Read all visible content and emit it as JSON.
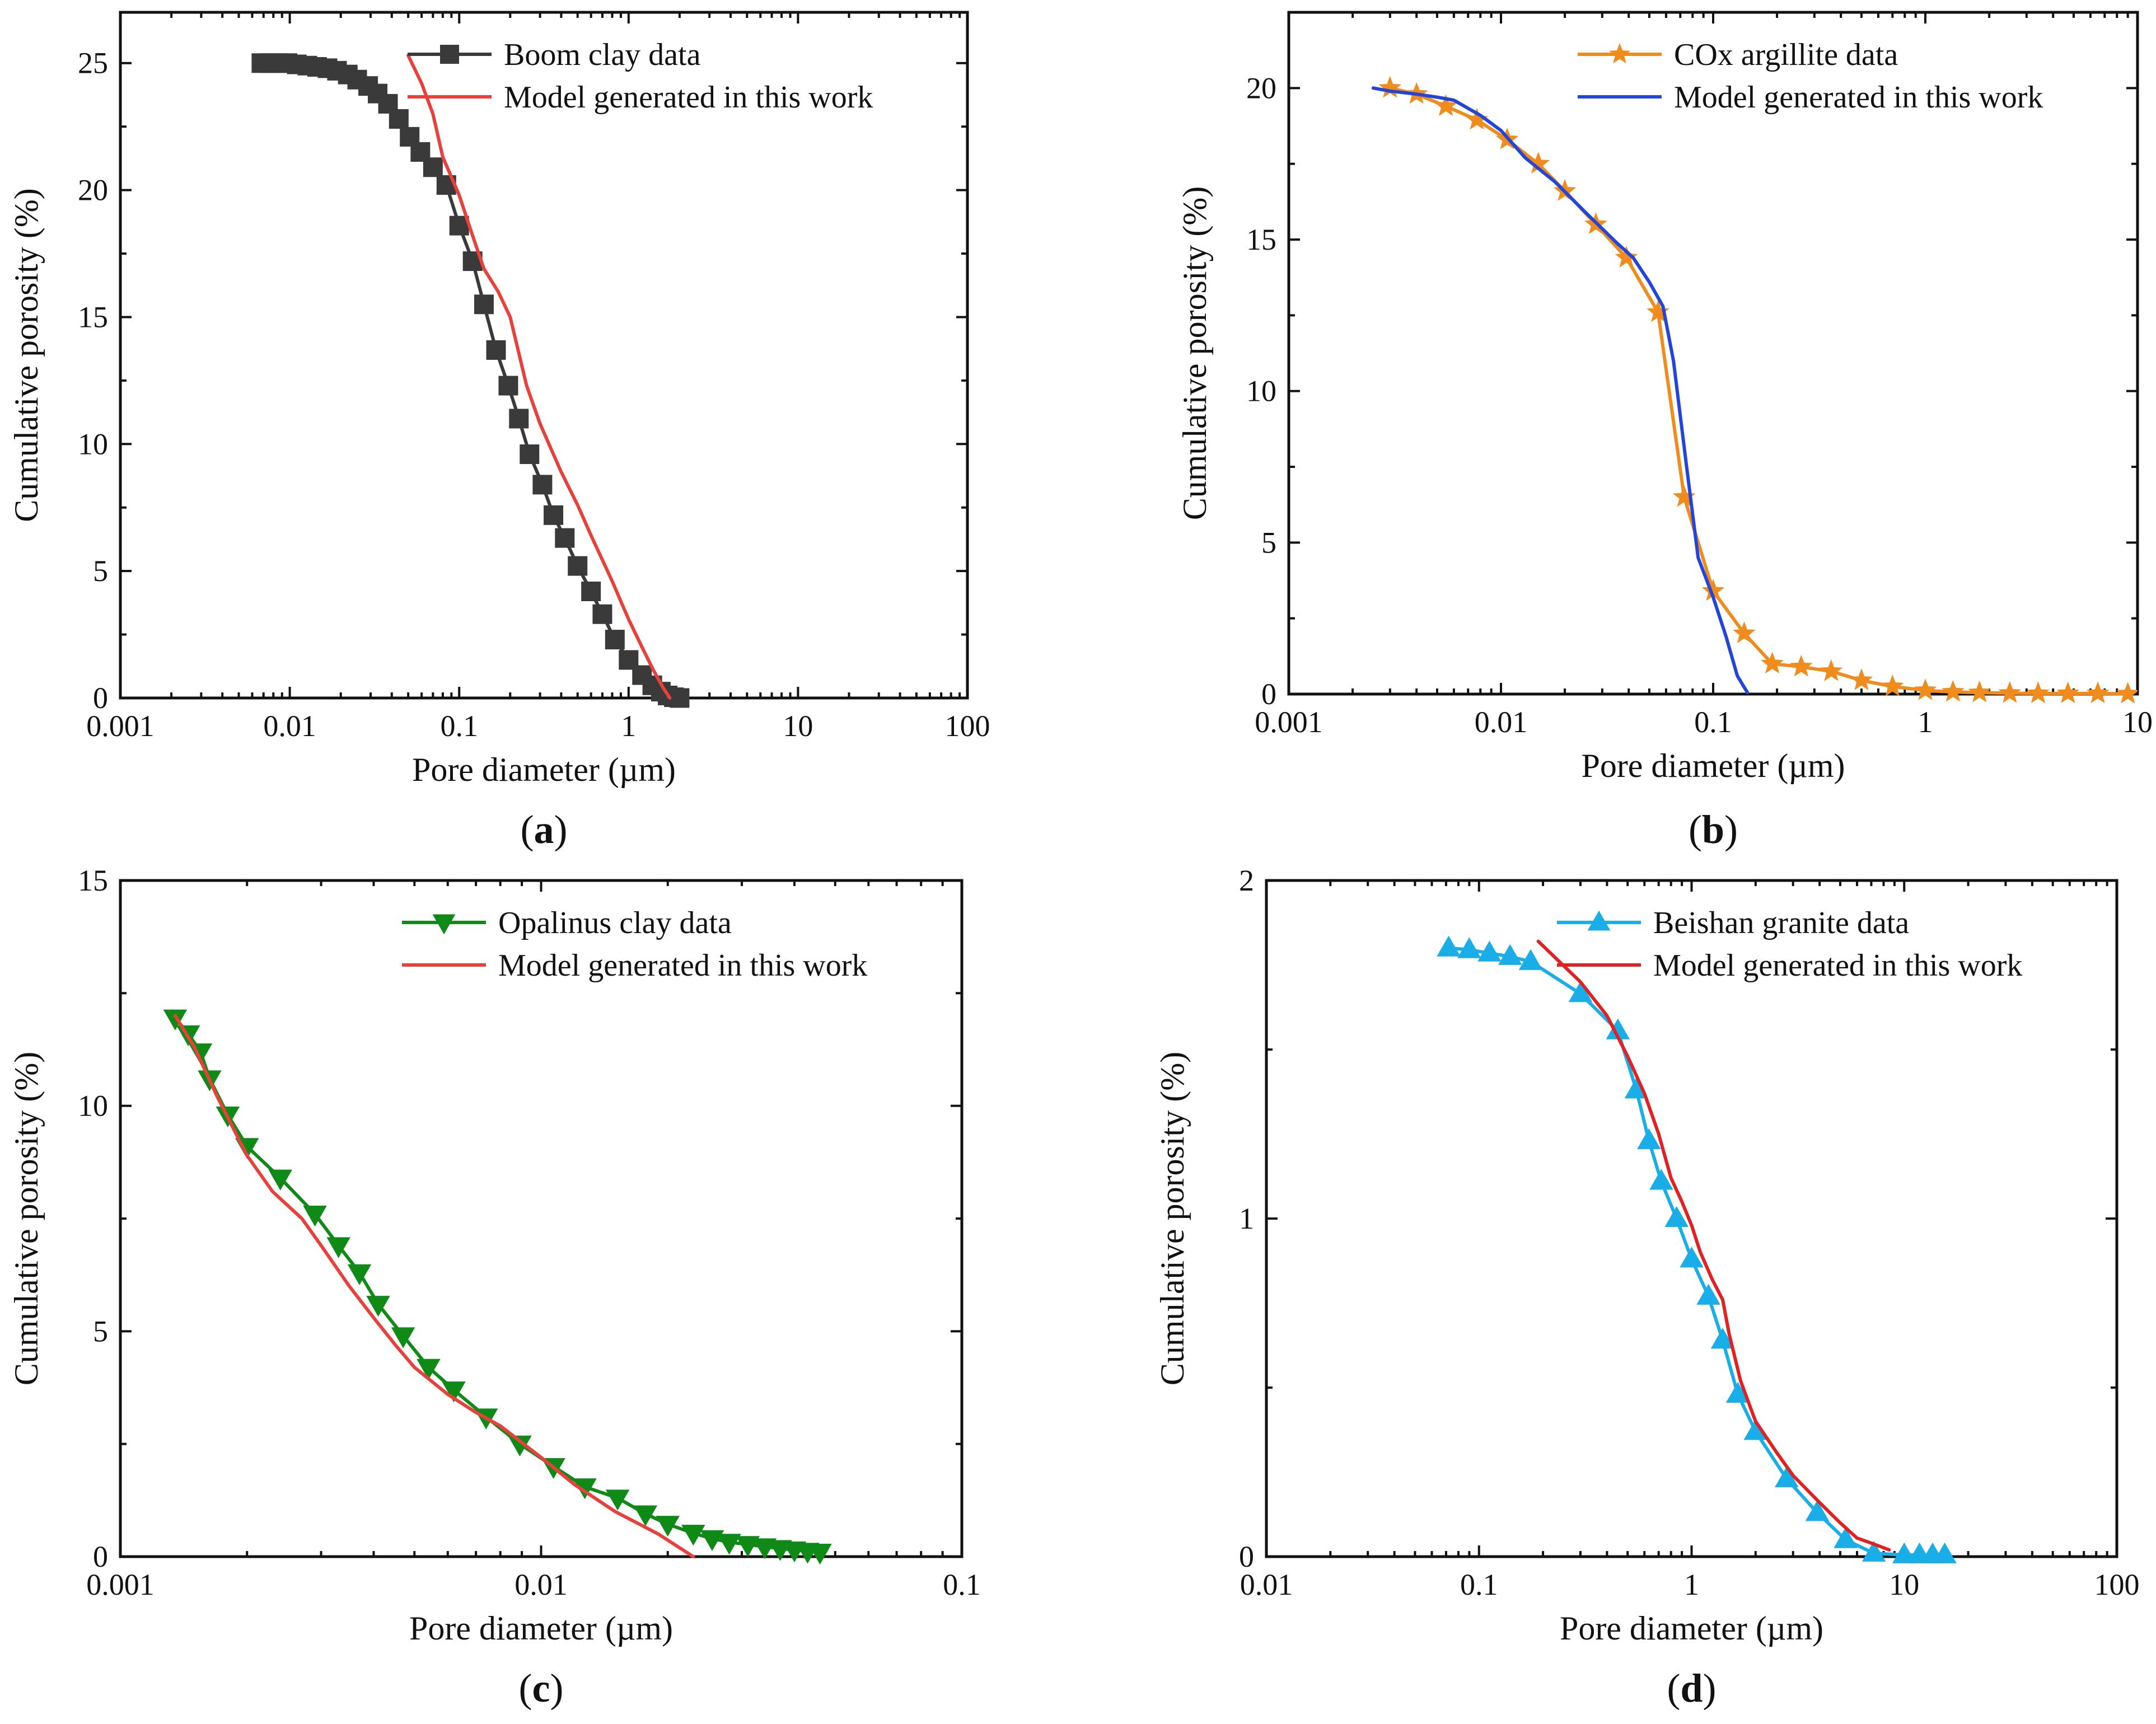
{
  "chart_data": [
    {
      "type": "line",
      "panel_label": "a",
      "xscale": "log",
      "xlim": [
        0.001,
        100
      ],
      "ylim": [
        0,
        27
      ],
      "xticks": [
        "0.001",
        "0.01",
        "0.1",
        "1",
        "10",
        "100"
      ],
      "yticks": [
        "0",
        "5",
        "10",
        "15",
        "20",
        "25"
      ],
      "xlabel": "Pore diameter (µm)",
      "ylabel": "Cumulative porosity (%)",
      "legend_position": "top-right",
      "series": [
        {
          "name": "Boom clay data",
          "color": "#3a3a3a",
          "marker": "square",
          "x": [
            0.0068,
            0.0076,
            0.0086,
            0.0097,
            0.011,
            0.0127,
            0.0145,
            0.0167,
            0.019,
            0.022,
            0.025,
            0.029,
            0.033,
            0.038,
            0.044,
            0.051,
            0.059,
            0.07,
            0.084,
            0.1,
            0.12,
            0.14,
            0.165,
            0.195,
            0.225,
            0.26,
            0.31,
            0.36,
            0.42,
            0.5,
            0.6,
            0.7,
            0.83,
            1.0,
            1.2,
            1.38,
            1.55,
            1.7,
            1.85,
            2.0
          ],
          "y": [
            25.0,
            25.0,
            25.0,
            25.0,
            24.95,
            24.9,
            24.85,
            24.8,
            24.7,
            24.55,
            24.35,
            24.1,
            23.8,
            23.4,
            22.8,
            22.1,
            21.5,
            20.9,
            20.2,
            18.6,
            17.2,
            15.5,
            13.7,
            12.3,
            11.0,
            9.6,
            8.4,
            7.2,
            6.3,
            5.2,
            4.2,
            3.3,
            2.3,
            1.5,
            0.9,
            0.5,
            0.25,
            0.1,
            0.03,
            0.0
          ]
        },
        {
          "name": "Model generated in this work",
          "color": "#e8413c",
          "marker": "none",
          "x": [
            0.05,
            0.06,
            0.07,
            0.08,
            0.1,
            0.12,
            0.14,
            0.17,
            0.2,
            0.25,
            0.3,
            0.4,
            0.5,
            0.6,
            0.8,
            1.0,
            1.2,
            1.4,
            1.6,
            1.75
          ],
          "y": [
            25.3,
            24.2,
            23.0,
            21.3,
            19.8,
            18.2,
            16.9,
            16.0,
            15.0,
            12.3,
            10.8,
            8.9,
            7.6,
            6.4,
            4.6,
            3.1,
            2.0,
            1.1,
            0.4,
            0.0
          ]
        }
      ]
    },
    {
      "type": "line",
      "panel_label": "b",
      "xscale": "log",
      "xlim": [
        0.001,
        10
      ],
      "ylim": [
        0,
        22.5
      ],
      "xticks": [
        "0.001",
        "0.01",
        "0.1",
        "1",
        "10"
      ],
      "yticks": [
        "0",
        "5",
        "10",
        "15",
        "20"
      ],
      "xlabel": "Pore diameter (µm)",
      "ylabel": "Cumulative porosity (%)",
      "legend_position": "top-right",
      "series": [
        {
          "name": "COx argillite data",
          "color": "#f08c1e",
          "marker": "star",
          "x": [
            0.003,
            0.004,
            0.0055,
            0.0077,
            0.0107,
            0.015,
            0.02,
            0.028,
            0.039,
            0.055,
            0.073,
            0.1,
            0.14,
            0.19,
            0.26,
            0.36,
            0.5,
            0.7,
            1.0,
            1.35,
            1.8,
            2.5,
            3.4,
            4.7,
            6.5,
            9.0
          ],
          "y": [
            20.0,
            19.8,
            19.4,
            18.95,
            18.3,
            17.5,
            16.6,
            15.5,
            14.4,
            12.6,
            6.5,
            3.4,
            2.0,
            1.0,
            0.9,
            0.75,
            0.45,
            0.25,
            0.12,
            0.07,
            0.05,
            0.03,
            0.02,
            0.02,
            0.02,
            0.01
          ]
        },
        {
          "name": "Model generated in this work",
          "color": "#2446d8",
          "marker": "none",
          "x": [
            0.0025,
            0.003,
            0.004,
            0.005,
            0.006,
            0.008,
            0.01,
            0.013,
            0.018,
            0.025,
            0.035,
            0.042,
            0.05,
            0.058,
            0.065,
            0.075,
            0.085,
            0.1,
            0.115,
            0.13,
            0.145
          ],
          "y": [
            20.0,
            19.9,
            19.8,
            19.7,
            19.6,
            19.1,
            18.6,
            17.7,
            16.9,
            15.9,
            14.9,
            14.4,
            13.6,
            12.8,
            11.0,
            7.5,
            4.5,
            3.2,
            1.9,
            0.6,
            0.05
          ]
        }
      ]
    },
    {
      "type": "line",
      "panel_label": "c",
      "xscale": "log",
      "xlim": [
        0.001,
        0.1
      ],
      "ylim": [
        0,
        15
      ],
      "xticks": [
        "0.001",
        "0.01",
        "0.1"
      ],
      "yticks": [
        "0",
        "5",
        "10",
        "15"
      ],
      "xlabel": "Pore diameter (µm)",
      "ylabel": "Cumulative porosity (%)",
      "legend_position": "top-right",
      "series": [
        {
          "name": "Opalinus clay data",
          "color": "#0f8a16",
          "marker": "triangle-down",
          "x": [
            0.00135,
            0.00145,
            0.00155,
            0.00163,
            0.0018,
            0.002,
            0.0024,
            0.0029,
            0.0033,
            0.0037,
            0.0041,
            0.0047,
            0.0054,
            0.0062,
            0.0074,
            0.0089,
            0.0107,
            0.0127,
            0.0152,
            0.0177,
            0.02,
            0.023,
            0.0255,
            0.028,
            0.031,
            0.034,
            0.037,
            0.04,
            0.043,
            0.046
          ],
          "y": [
            11.95,
            11.6,
            11.2,
            10.6,
            9.8,
            9.1,
            8.4,
            7.6,
            6.9,
            6.3,
            5.6,
            4.9,
            4.2,
            3.7,
            3.1,
            2.5,
            2.0,
            1.55,
            1.3,
            0.95,
            0.72,
            0.52,
            0.4,
            0.32,
            0.27,
            0.22,
            0.18,
            0.15,
            0.12,
            0.1
          ]
        },
        {
          "name": "Model generated in this work",
          "color": "#e8413c",
          "marker": "none",
          "x": [
            0.00135,
            0.0015,
            0.0017,
            0.002,
            0.0023,
            0.0027,
            0.003,
            0.0035,
            0.004,
            0.0045,
            0.005,
            0.006,
            0.007,
            0.008,
            0.01,
            0.012,
            0.015,
            0.019,
            0.023
          ],
          "y": [
            12.0,
            11.3,
            10.2,
            8.9,
            8.1,
            7.5,
            6.9,
            6.0,
            5.3,
            4.7,
            4.2,
            3.6,
            3.2,
            2.9,
            2.2,
            1.6,
            1.0,
            0.5,
            0.0
          ]
        }
      ]
    },
    {
      "type": "line",
      "panel_label": "d",
      "xscale": "log",
      "xlim": [
        0.01,
        100
      ],
      "ylim": [
        0,
        2
      ],
      "xticks": [
        "0.01",
        "0.1",
        "1",
        "10",
        "100"
      ],
      "yticks": [
        "0",
        "1",
        "2"
      ],
      "xlabel": "Pore diameter (µm)",
      "ylabel": "Cumulative porosity (%)",
      "legend_position": "top-right",
      "series": [
        {
          "name": "Beishan granite data",
          "color": "#1aaee8",
          "marker": "triangle-up",
          "x": [
            0.072,
            0.09,
            0.112,
            0.14,
            0.175,
            0.3,
            0.45,
            0.55,
            0.63,
            0.72,
            0.85,
            1.0,
            1.2,
            1.4,
            1.65,
            2.0,
            2.8,
            3.9,
            5.3,
            7.2,
            10.0,
            11.8,
            13.6,
            15.5
          ],
          "y": [
            1.8,
            1.795,
            1.785,
            1.775,
            1.76,
            1.665,
            1.555,
            1.38,
            1.23,
            1.11,
            1.0,
            0.88,
            0.77,
            0.64,
            0.48,
            0.37,
            0.23,
            0.13,
            0.05,
            0.01,
            0.005,
            0.005,
            0.005,
            0.005
          ]
        },
        {
          "name": "Model generated in this work",
          "color": "#e02222",
          "marker": "none",
          "x": [
            0.19,
            0.3,
            0.4,
            0.5,
            0.6,
            0.7,
            0.8,
            0.9,
            1.0,
            1.1,
            1.25,
            1.4,
            1.5,
            1.7,
            2.0,
            2.5,
            3.0,
            4.0,
            5.0,
            6.0,
            7.0,
            8.5
          ],
          "y": [
            1.82,
            1.7,
            1.6,
            1.48,
            1.37,
            1.25,
            1.12,
            1.05,
            0.98,
            0.9,
            0.82,
            0.76,
            0.66,
            0.52,
            0.4,
            0.31,
            0.24,
            0.16,
            0.1,
            0.055,
            0.04,
            0.02
          ]
        }
      ]
    }
  ]
}
